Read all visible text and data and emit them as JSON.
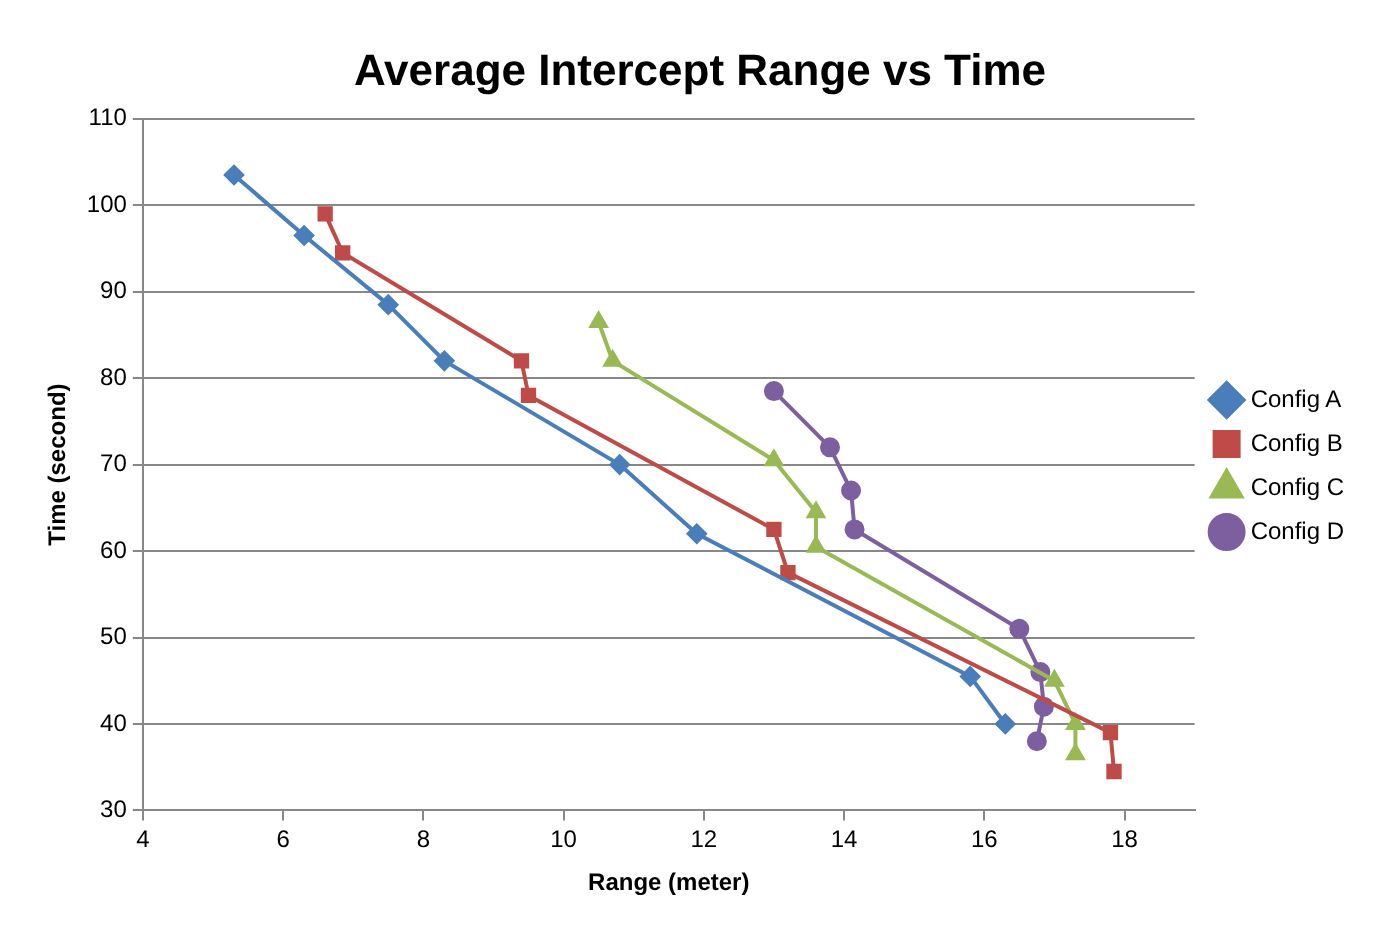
{
  "chart_data": {
    "type": "line",
    "title": "Average Intercept Range vs Time",
    "xlabel": "Range (meter)",
    "ylabel": "Time (second)",
    "xlim": [
      4,
      19
    ],
    "xticks": [
      4,
      6,
      8,
      10,
      12,
      14,
      16,
      18
    ],
    "ylim": [
      30,
      110
    ],
    "yticks": [
      30,
      40,
      50,
      60,
      70,
      80,
      90,
      100,
      110
    ],
    "grid": "y",
    "legend": "right",
    "series": [
      {
        "name": "Config A",
        "color": "#4a7ebb",
        "marker": "diamond",
        "x": [
          5.3,
          6.3,
          7.5,
          8.3,
          10.8,
          11.9,
          15.8,
          16.3
        ],
        "values": [
          103.5,
          96.5,
          88.5,
          82,
          70,
          62,
          45.5,
          40
        ]
      },
      {
        "name": "Config B",
        "color": "#be4b48",
        "marker": "square",
        "x": [
          6.6,
          6.85,
          9.4,
          9.5,
          13.0,
          13.2,
          17.8,
          17.85
        ],
        "values": [
          99,
          94.5,
          82,
          78,
          62.5,
          57.5,
          39,
          34.5
        ]
      },
      {
        "name": "Config C",
        "color": "#98b954",
        "marker": "triangle",
        "x": [
          10.5,
          10.7,
          13.0,
          13.6,
          13.6,
          17.0,
          17.3,
          17.3
        ],
        "values": [
          86.5,
          82,
          70.5,
          64.5,
          60.5,
          45,
          40,
          36.5
        ]
      },
      {
        "name": "Config D",
        "color": "#7d5fa0",
        "marker": "circle",
        "x": [
          13.0,
          13.8,
          14.1,
          14.15,
          16.5,
          16.8,
          16.85,
          16.75
        ],
        "values": [
          78.5,
          72,
          67,
          62.5,
          51,
          46,
          42,
          38
        ]
      }
    ]
  }
}
